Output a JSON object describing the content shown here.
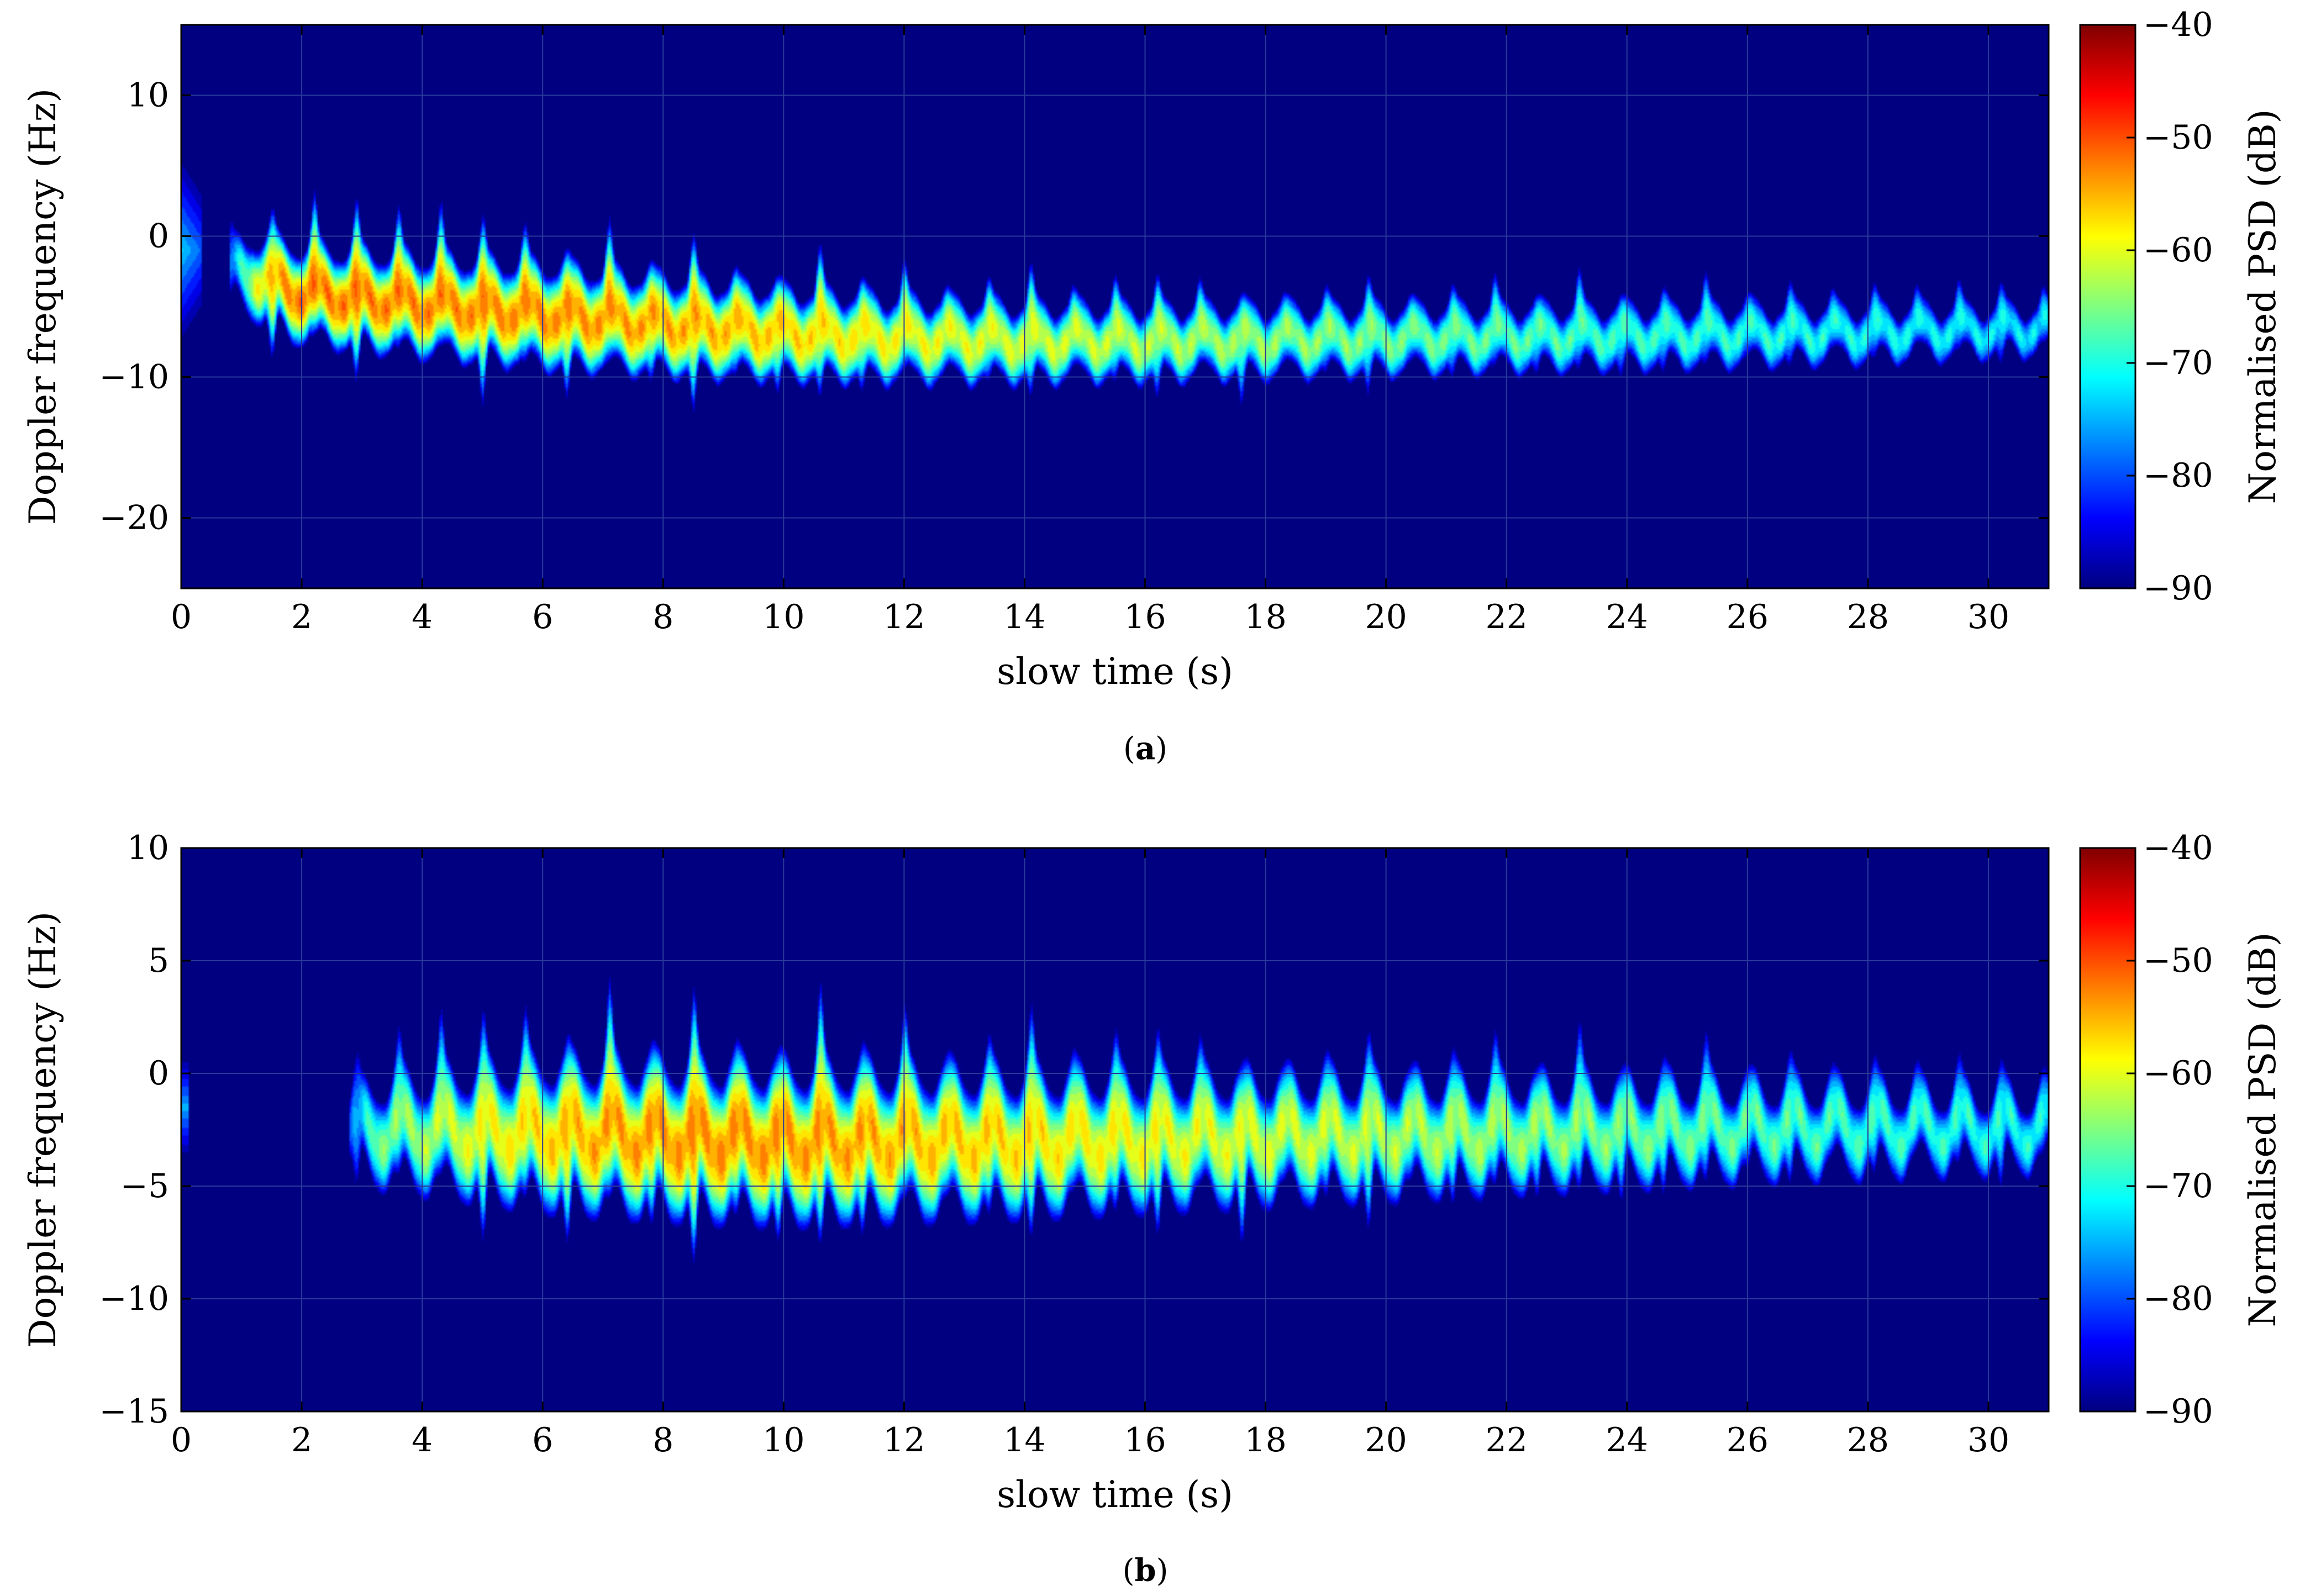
{
  "colormap": "jet",
  "colors": {
    "background": "#000080",
    "axis": "#000000",
    "grid": "#2a3a9a"
  },
  "chart_data": [
    {
      "type": "heatmap",
      "panel_label": "a",
      "caption": {
        "open": "(",
        "letter": "a",
        "close": ")"
      },
      "xlabel": "slow time (s)",
      "ylabel": "Doppler frequency (Hz)",
      "xlim": [
        0,
        31
      ],
      "ylim": [
        -25,
        15
      ],
      "xticks": [
        0,
        2,
        4,
        6,
        8,
        10,
        12,
        14,
        16,
        18,
        20,
        22,
        24,
        26,
        28,
        30
      ],
      "xtick_labels": [
        "0",
        "2",
        "4",
        "6",
        "8",
        "10",
        "12",
        "14",
        "16",
        "18",
        "20",
        "22",
        "24",
        "26",
        "28",
        "30"
      ],
      "yticks": [
        10,
        0,
        -10,
        -20
      ],
      "ytick_labels": [
        "10",
        "0",
        "−10",
        "−20"
      ],
      "colorbar": {
        "label": "Normalised PSD (dB)",
        "range": [
          -90,
          -40
        ],
        "ticks": [
          -40,
          -50,
          -60,
          -70,
          -80,
          -90
        ],
        "tick_labels": [
          "−40",
          "−50",
          "−60",
          "−70",
          "−80",
          "−90"
        ]
      },
      "signal": {
        "t_start": 0.8,
        "t_end": 31,
        "center_hz": [
          [
            1.0,
            -2.5
          ],
          [
            2.0,
            -4.0
          ],
          [
            4.0,
            -4.8
          ],
          [
            6.0,
            -5.5
          ],
          [
            8.0,
            -6.2
          ],
          [
            10.0,
            -6.8
          ],
          [
            12.0,
            -7.2
          ],
          [
            14.0,
            -7.4
          ],
          [
            16.0,
            -7.4
          ],
          [
            20.0,
            -7.2
          ],
          [
            24.0,
            -7.0
          ],
          [
            28.0,
            -6.8
          ],
          [
            31.0,
            -6.5
          ]
        ],
        "halfwidth_hz": [
          [
            1.0,
            3.0
          ],
          [
            2.0,
            3.3
          ],
          [
            6.0,
            3.6
          ],
          [
            10.0,
            3.3
          ],
          [
            14.0,
            3.0
          ],
          [
            20.0,
            2.8
          ],
          [
            26.0,
            2.6
          ],
          [
            31.0,
            2.2
          ]
        ],
        "peak_db": [
          [
            0.8,
            -65
          ],
          [
            1.8,
            -51
          ],
          [
            6.0,
            -52
          ],
          [
            9.0,
            -54
          ],
          [
            12.0,
            -58
          ],
          [
            16.0,
            -61
          ],
          [
            20.0,
            -64
          ],
          [
            24.0,
            -67
          ],
          [
            28.0,
            -69
          ],
          [
            31.0,
            -71
          ]
        ],
        "modulation_period_s": 0.7
      }
    },
    {
      "type": "heatmap",
      "panel_label": "b",
      "caption": {
        "open": "(",
        "letter": "b",
        "close": ")"
      },
      "xlabel": "slow time (s)",
      "ylabel": "Doppler frequency (Hz)",
      "xlim": [
        0,
        31
      ],
      "ylim": [
        -15,
        10
      ],
      "xticks": [
        0,
        2,
        4,
        6,
        8,
        10,
        12,
        14,
        16,
        18,
        20,
        22,
        24,
        26,
        28,
        30
      ],
      "xtick_labels": [
        "0",
        "2",
        "4",
        "6",
        "8",
        "10",
        "12",
        "14",
        "16",
        "18",
        "20",
        "22",
        "24",
        "26",
        "28",
        "30"
      ],
      "yticks": [
        10,
        5,
        0,
        -5,
        -10,
        -15
      ],
      "ytick_labels": [
        "10",
        "5",
        "0",
        "−5",
        "−10",
        "−15"
      ],
      "colorbar": {
        "label": "Normalised PSD (dB)",
        "range": [
          -90,
          -40
        ],
        "ticks": [
          -40,
          -50,
          -60,
          -70,
          -80,
          -90
        ],
        "tick_labels": [
          "−40",
          "−50",
          "−60",
          "−70",
          "−80",
          "−90"
        ]
      },
      "signal": {
        "t_start": 2.8,
        "t_end": 31,
        "center_hz": [
          [
            2.8,
            -2.5
          ],
          [
            6.0,
            -2.6
          ],
          [
            10.0,
            -3.0
          ],
          [
            14.0,
            -3.0
          ],
          [
            18.0,
            -2.8
          ],
          [
            22.0,
            -2.6
          ],
          [
            26.0,
            -2.4
          ],
          [
            31.0,
            -2.4
          ]
        ],
        "halfwidth_hz": [
          [
            2.8,
            2.4
          ],
          [
            6.0,
            3.2
          ],
          [
            10.0,
            3.3
          ],
          [
            14.0,
            3.1
          ],
          [
            20.0,
            2.8
          ],
          [
            26.0,
            2.4
          ],
          [
            31.0,
            2.0
          ]
        ],
        "peak_db": [
          [
            2.8,
            -66
          ],
          [
            5.0,
            -58
          ],
          [
            7.0,
            -53
          ],
          [
            9.0,
            -52
          ],
          [
            11.0,
            -53
          ],
          [
            13.0,
            -55
          ],
          [
            16.0,
            -58
          ],
          [
            20.0,
            -61
          ],
          [
            24.0,
            -64
          ],
          [
            28.0,
            -67
          ],
          [
            31.0,
            -69
          ]
        ],
        "modulation_period_s": 0.7
      }
    }
  ]
}
